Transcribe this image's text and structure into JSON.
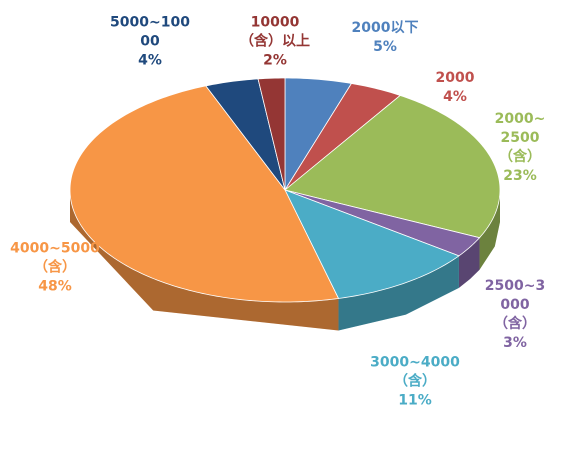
{
  "chart_data": {
    "type": "pie3d",
    "categories": [
      "2000以下",
      "2000",
      "2000~2500\n（含）",
      "2500~3000\n（含）",
      "3000~4000\n（含）",
      "4000~5000\n（含）",
      "5000~10000",
      "10000\n（含）以上"
    ],
    "values": [
      5,
      4,
      23,
      3,
      11,
      48,
      4,
      2
    ],
    "value_labels": [
      "5%",
      "4%",
      "23%",
      "3%",
      "11%",
      "48%",
      "4%",
      "2%"
    ],
    "colors": [
      "#4f81bd",
      "#c0504d",
      "#9bbb59",
      "#8064a2",
      "#4bacc6",
      "#f79646",
      "#1f497d",
      "#943634"
    ]
  }
}
